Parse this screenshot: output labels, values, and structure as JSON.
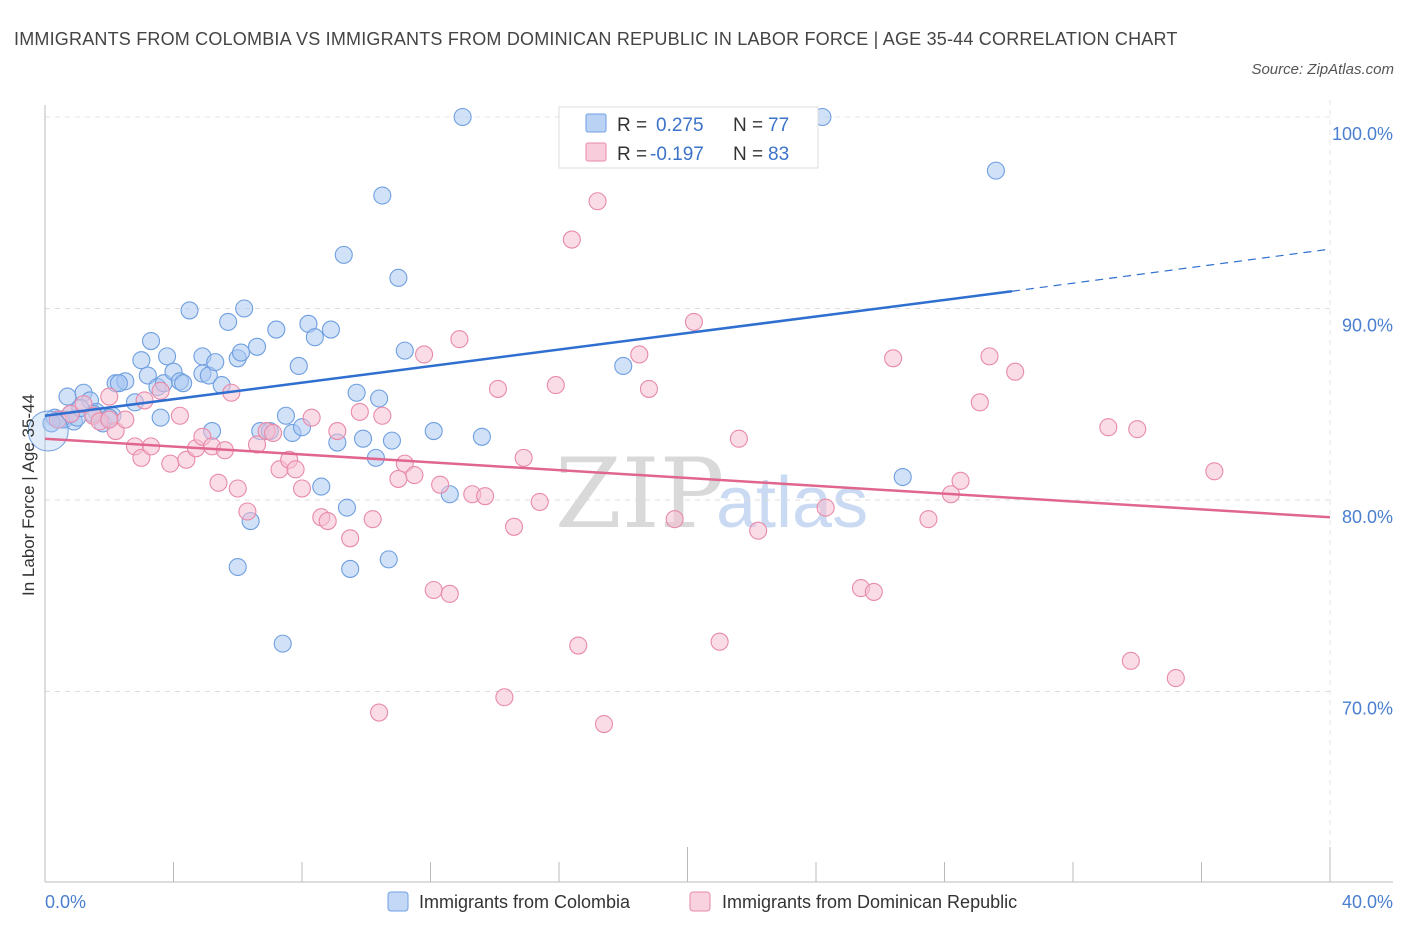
{
  "chart_data": {
    "type": "scatter",
    "title": "IMMIGRANTS FROM COLOMBIA VS IMMIGRANTS FROM DOMINICAN REPUBLIC IN LABOR FORCE | AGE 35-44 CORRELATION CHART",
    "source": "Source: ZipAtlas.com",
    "xlabel": "",
    "ylabel": "In Labor Force | Age 35-44",
    "xlim": [
      0,
      40
    ],
    "ylim": [
      60,
      100.5
    ],
    "x_tick_labels": [
      "0.0%",
      "40.0%"
    ],
    "y_ticks": [
      70,
      80,
      90,
      100
    ],
    "y_tick_labels": [
      "70.0%",
      "80.0%",
      "90.0%",
      "100.0%"
    ],
    "grid": true,
    "legend_placement": "top-center",
    "watermark": {
      "zip": "ZIP",
      "atlas": "atlas"
    },
    "series": [
      {
        "name": "Immigrants from Colombia",
        "color": "#a9c8f3",
        "stroke": "#6f9fe0",
        "line_color": "#2f6fd0",
        "R": "0.275",
        "N": "77",
        "trend": {
          "x0": 0,
          "y0": 84.4,
          "x1": 30.1,
          "y1": 90.9,
          "dash_to_x": 40,
          "dash_to_y": 93.1
        },
        "points": [
          [
            0.3,
            84.3
          ],
          [
            0.6,
            84.2
          ],
          [
            0.7,
            85.4
          ],
          [
            0.9,
            84.1
          ],
          [
            1.2,
            85.6
          ],
          [
            1.4,
            85.2
          ],
          [
            1.6,
            84.6
          ],
          [
            1.8,
            84.0
          ],
          [
            2.1,
            84.4
          ],
          [
            2.2,
            86.1
          ],
          [
            2.5,
            86.2
          ],
          [
            2.8,
            85.1
          ],
          [
            3.0,
            87.3
          ],
          [
            3.2,
            86.5
          ],
          [
            3.3,
            88.3
          ],
          [
            3.5,
            85.9
          ],
          [
            3.6,
            84.3
          ],
          [
            3.7,
            86.1
          ],
          [
            3.8,
            87.5
          ],
          [
            4.0,
            86.7
          ],
          [
            4.2,
            86.2
          ],
          [
            4.3,
            86.1
          ],
          [
            4.5,
            89.9
          ],
          [
            4.9,
            87.5
          ],
          [
            4.9,
            86.6
          ],
          [
            5.1,
            86.5
          ],
          [
            5.2,
            83.6
          ],
          [
            5.3,
            87.2
          ],
          [
            5.5,
            86.0
          ],
          [
            5.7,
            89.3
          ],
          [
            6.0,
            87.4
          ],
          [
            6.1,
            87.7
          ],
          [
            6.2,
            90.0
          ],
          [
            6.4,
            78.9
          ],
          [
            6.6,
            88.0
          ],
          [
            6.7,
            83.6
          ],
          [
            7.0,
            83.6
          ],
          [
            7.2,
            88.9
          ],
          [
            7.5,
            84.4
          ],
          [
            7.7,
            83.5
          ],
          [
            7.9,
            87.0
          ],
          [
            8.0,
            83.8
          ],
          [
            8.2,
            89.2
          ],
          [
            8.4,
            88.5
          ],
          [
            8.6,
            80.7
          ],
          [
            8.9,
            88.9
          ],
          [
            9.1,
            83.0
          ],
          [
            9.3,
            92.8
          ],
          [
            9.4,
            79.6
          ],
          [
            9.5,
            76.4
          ],
          [
            9.7,
            85.6
          ],
          [
            9.9,
            83.2
          ],
          [
            10.3,
            82.2
          ],
          [
            10.4,
            85.3
          ],
          [
            10.5,
            95.9
          ],
          [
            10.7,
            76.9
          ],
          [
            10.8,
            83.1
          ],
          [
            11.0,
            91.6
          ],
          [
            11.2,
            87.8
          ],
          [
            12.1,
            83.6
          ],
          [
            12.6,
            80.3
          ],
          [
            13.0,
            100.0
          ],
          [
            13.6,
            83.3
          ],
          [
            6.0,
            76.5
          ],
          [
            7.4,
            72.5
          ],
          [
            18.0,
            87.0
          ],
          [
            24.2,
            100.0
          ],
          [
            26.7,
            81.2
          ],
          [
            29.6,
            97.2
          ],
          [
            1.0,
            84.3
          ],
          [
            2.0,
            84.3
          ],
          [
            0.5,
            84.2
          ],
          [
            1.5,
            84.5
          ],
          [
            0.8,
            84.5
          ],
          [
            2.3,
            86.1
          ],
          [
            1.1,
            84.8
          ],
          [
            0.2,
            84.0
          ]
        ]
      },
      {
        "name": "Immigrants from Dominican Republic",
        "color": "#f6bfd2",
        "stroke": "#e88aa9",
        "line_color": "#e0668e",
        "R": "-0.197",
        "N": "83",
        "trend": {
          "x0": 0,
          "y0": 83.2,
          "x1": 40,
          "y1": 79.1
        },
        "points": [
          [
            0.4,
            84.2
          ],
          [
            0.8,
            84.5
          ],
          [
            1.2,
            85.0
          ],
          [
            1.5,
            84.4
          ],
          [
            1.7,
            84.1
          ],
          [
            2.0,
            85.4
          ],
          [
            2.2,
            83.6
          ],
          [
            2.5,
            84.2
          ],
          [
            2.8,
            82.8
          ],
          [
            3.0,
            82.2
          ],
          [
            3.3,
            82.8
          ],
          [
            3.6,
            85.7
          ],
          [
            3.9,
            81.9
          ],
          [
            4.2,
            84.4
          ],
          [
            4.4,
            82.1
          ],
          [
            4.7,
            82.7
          ],
          [
            4.9,
            83.3
          ],
          [
            5.2,
            82.8
          ],
          [
            5.4,
            80.9
          ],
          [
            5.8,
            85.6
          ],
          [
            6.0,
            80.6
          ],
          [
            6.3,
            79.4
          ],
          [
            6.6,
            82.9
          ],
          [
            6.9,
            83.6
          ],
          [
            7.1,
            83.5
          ],
          [
            7.3,
            81.6
          ],
          [
            7.6,
            82.1
          ],
          [
            7.8,
            81.6
          ],
          [
            8.0,
            80.6
          ],
          [
            8.3,
            84.3
          ],
          [
            8.6,
            79.1
          ],
          [
            8.8,
            78.9
          ],
          [
            9.1,
            83.6
          ],
          [
            9.5,
            78.0
          ],
          [
            9.8,
            84.6
          ],
          [
            10.2,
            79.0
          ],
          [
            10.5,
            84.4
          ],
          [
            11.0,
            81.1
          ],
          [
            11.2,
            81.9
          ],
          [
            11.5,
            81.3
          ],
          [
            11.8,
            87.6
          ],
          [
            12.1,
            75.3
          ],
          [
            12.3,
            80.8
          ],
          [
            12.6,
            75.1
          ],
          [
            12.9,
            88.4
          ],
          [
            13.3,
            80.3
          ],
          [
            13.7,
            80.2
          ],
          [
            14.1,
            85.8
          ],
          [
            14.6,
            78.6
          ],
          [
            14.9,
            82.2
          ],
          [
            15.4,
            79.9
          ],
          [
            15.9,
            86.0
          ],
          [
            16.4,
            93.6
          ],
          [
            16.6,
            72.4
          ],
          [
            17.2,
            95.6
          ],
          [
            17.4,
            68.3
          ],
          [
            18.5,
            87.6
          ],
          [
            18.8,
            85.8
          ],
          [
            19.6,
            79.0
          ],
          [
            20.2,
            89.3
          ],
          [
            21.0,
            72.6
          ],
          [
            21.6,
            83.2
          ],
          [
            22.2,
            78.4
          ],
          [
            24.3,
            79.6
          ],
          [
            25.4,
            75.4
          ],
          [
            25.8,
            75.2
          ],
          [
            26.4,
            87.4
          ],
          [
            27.5,
            79.0
          ],
          [
            28.2,
            80.3
          ],
          [
            28.5,
            81.0
          ],
          [
            29.1,
            85.1
          ],
          [
            29.4,
            87.5
          ],
          [
            30.2,
            86.7
          ],
          [
            33.1,
            83.8
          ],
          [
            33.8,
            71.6
          ],
          [
            34.0,
            83.7
          ],
          [
            35.2,
            70.7
          ],
          [
            36.4,
            81.5
          ],
          [
            10.4,
            68.9
          ],
          [
            14.3,
            69.7
          ],
          [
            2.0,
            84.2
          ],
          [
            3.1,
            85.2
          ],
          [
            5.6,
            82.6
          ]
        ]
      }
    ]
  }
}
